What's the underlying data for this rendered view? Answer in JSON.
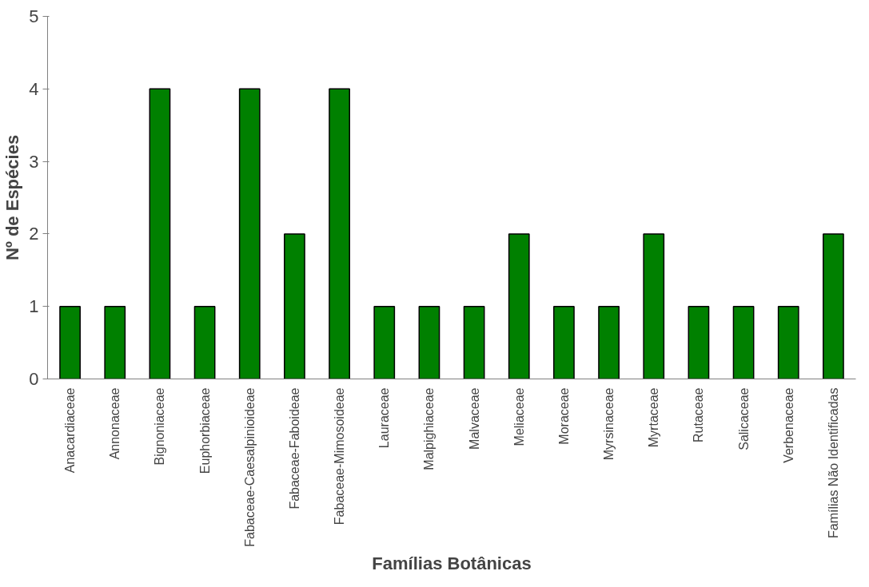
{
  "chart_data": {
    "type": "bar",
    "xlabel": "Famílias Botânicas",
    "ylabel": "Nº de Espécies",
    "categories": [
      "Anacardiaceae",
      "Annonaceae",
      "Bignoniaceae",
      "Euphorbiaceae",
      "Fabaceae-Caesalpinioideae",
      "Fabaceae-Faboideae",
      "Fabaceae-Mimosoideae",
      "Lauraceae",
      "Malpighiaceae",
      "Malvaceae",
      "Meliaceae",
      "Moraceae",
      "Myrsinaceae",
      "Myrtaceae",
      "Rutaceae",
      "Salicaceae",
      "Verbenaceae",
      "Famílias Não Identificadas"
    ],
    "values": [
      1,
      1,
      4,
      1,
      4,
      2,
      4,
      1,
      1,
      1,
      2,
      1,
      1,
      2,
      1,
      1,
      1,
      2
    ],
    "color": "#008000",
    "ylim": [
      0,
      5
    ],
    "yticks": [
      0,
      1,
      2,
      3,
      4,
      5
    ],
    "grid": false
  }
}
